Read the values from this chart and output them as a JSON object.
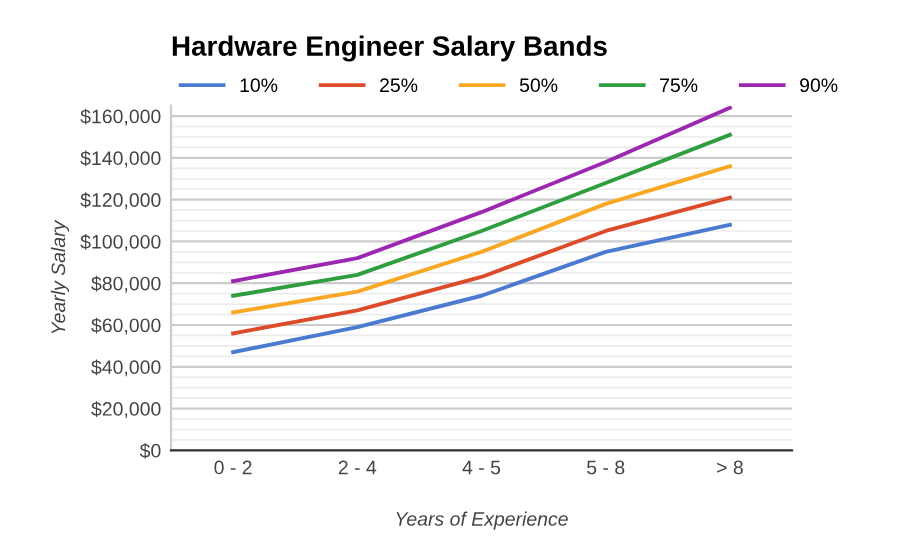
{
  "chart_data": {
    "type": "line",
    "title": "Hardware Engineer Salary Bands",
    "xlabel": "Years of Experience",
    "ylabel": "Yearly Salary",
    "categories": [
      "0 - 2",
      "2 - 4",
      "4 - 5",
      "5 - 8",
      "> 8"
    ],
    "series": [
      {
        "name": "10%",
        "color": "#4a7bd0",
        "values": [
          47000,
          59000,
          74000,
          95000,
          108000
        ]
      },
      {
        "name": "25%",
        "color": "#dc4b2a",
        "values": [
          56000,
          67000,
          83000,
          105000,
          121000
        ]
      },
      {
        "name": "50%",
        "color": "#f9a825",
        "values": [
          66000,
          76000,
          95000,
          118000,
          136000
        ]
      },
      {
        "name": "75%",
        "color": "#2e9e3e",
        "values": [
          74000,
          84000,
          105000,
          128000,
          151000
        ]
      },
      {
        "name": "90%",
        "color": "#9c27b0",
        "values": [
          81000,
          92000,
          114000,
          138000,
          164000
        ]
      }
    ],
    "ylim": [
      0,
      165000
    ],
    "yticks": [
      {
        "value": 0,
        "label": "$0"
      },
      {
        "value": 20000,
        "label": "$20,000"
      },
      {
        "value": 40000,
        "label": "$40,000"
      },
      {
        "value": 60000,
        "label": "$60,000"
      },
      {
        "value": 80000,
        "label": "$80,000"
      },
      {
        "value": 100000,
        "label": "$100,000"
      },
      {
        "value": 120000,
        "label": "$120,000"
      },
      {
        "value": 140000,
        "label": "$140,000"
      },
      {
        "value": 160000,
        "label": "$160,000"
      }
    ],
    "grid": "y",
    "legend": "top",
    "marker": "none",
    "line_style": "solid"
  }
}
